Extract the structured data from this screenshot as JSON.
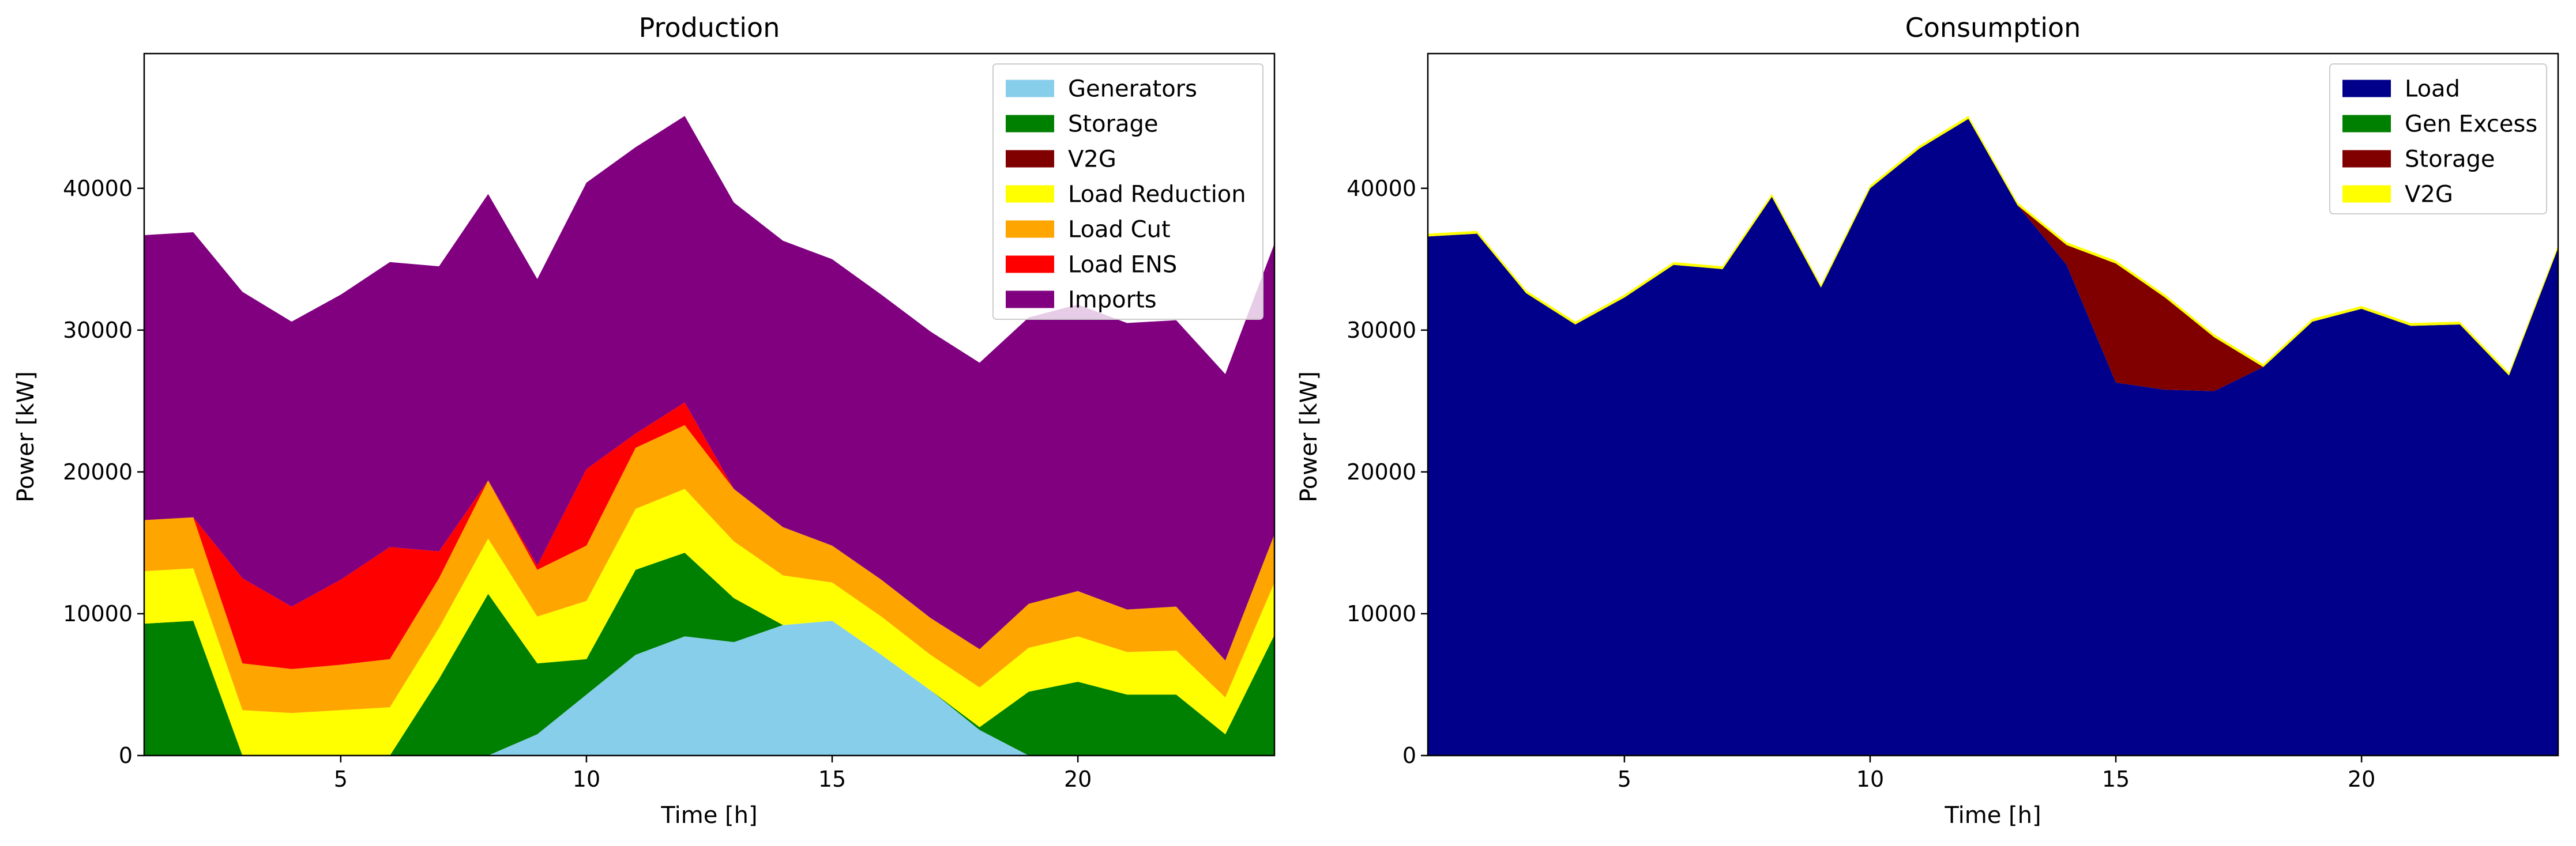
{
  "chart_data": [
    {
      "type": "area",
      "title": "Production",
      "xlabel": "Time [h]",
      "ylabel": "Power [kW]",
      "xlim": [
        1,
        24
      ],
      "ylim": [
        0,
        49500
      ],
      "xticks": [
        5,
        10,
        15,
        20
      ],
      "yticks": [
        0,
        10000,
        20000,
        30000,
        40000
      ],
      "stacked": true,
      "legend_position": "top-right",
      "grid": false,
      "x": [
        1,
        2,
        3,
        4,
        5,
        6,
        7,
        8,
        9,
        10,
        11,
        12,
        13,
        14,
        15,
        16,
        17,
        18,
        19,
        20,
        21,
        22,
        23,
        24
      ],
      "series": [
        {
          "name": "Generators",
          "color": "#87CEEB",
          "values": [
            0,
            0,
            0,
            0,
            0,
            0,
            0,
            0,
            1500,
            4300,
            7100,
            8400,
            8000,
            9200,
            9500,
            7100,
            4600,
            1800,
            0,
            0,
            0,
            0,
            0,
            0
          ]
        },
        {
          "name": "Storage",
          "color": "#008000",
          "values": [
            9300,
            9500,
            0,
            0,
            0,
            0,
            5400,
            11400,
            5000,
            2500,
            6000,
            5900,
            3100,
            0,
            0,
            0,
            0,
            200,
            4500,
            5200,
            4300,
            4300,
            1500,
            8500
          ]
        },
        {
          "name": "V2G",
          "color": "#800000",
          "values": [
            0,
            0,
            0,
            0,
            0,
            0,
            0,
            0,
            0,
            0,
            0,
            0,
            0,
            0,
            0,
            0,
            0,
            0,
            0,
            0,
            0,
            0,
            0,
            0
          ]
        },
        {
          "name": "Load Reduction",
          "color": "#FFFF00",
          "values": [
            3700,
            3700,
            3200,
            3000,
            3200,
            3400,
            3600,
            3900,
            3300,
            4100,
            4300,
            4500,
            4000,
            3500,
            2700,
            2700,
            2500,
            2800,
            3100,
            3200,
            3000,
            3100,
            2600,
            3700
          ]
        },
        {
          "name": "Load Cut",
          "color": "#FFA500",
          "values": [
            3600,
            3600,
            3300,
            3100,
            3200,
            3400,
            3500,
            4100,
            3300,
            3900,
            4300,
            4500,
            3700,
            3400,
            2600,
            2600,
            2600,
            2700,
            3100,
            3200,
            3000,
            3100,
            2600,
            3400
          ]
        },
        {
          "name": "Load ENS",
          "color": "#FF0000",
          "values": [
            0,
            0,
            6000,
            4400,
            6000,
            7900,
            1900,
            0,
            300,
            5400,
            1000,
            1600,
            0,
            0,
            0,
            0,
            0,
            0,
            0,
            0,
            0,
            0,
            0,
            0
          ]
        },
        {
          "name": "Imports",
          "color": "#800080",
          "values": [
            20100,
            20100,
            20200,
            20100,
            20100,
            20100,
            20100,
            20200,
            20200,
            20200,
            20200,
            20200,
            20200,
            20200,
            20200,
            20100,
            20200,
            20200,
            20200,
            20200,
            20200,
            20200,
            20200,
            20500
          ]
        }
      ]
    },
    {
      "type": "area",
      "title": "Consumption",
      "xlabel": "Time [h]",
      "ylabel": "Power [kW]",
      "xlim": [
        1,
        24
      ],
      "ylim": [
        0,
        49500
      ],
      "xticks": [
        5,
        10,
        15,
        20
      ],
      "yticks": [
        0,
        10000,
        20000,
        30000,
        40000
      ],
      "stacked": true,
      "legend_position": "top-right",
      "grid": false,
      "x": [
        1,
        2,
        3,
        4,
        5,
        6,
        7,
        8,
        9,
        10,
        11,
        12,
        13,
        14,
        15,
        16,
        17,
        18,
        19,
        20,
        21,
        22,
        23,
        24
      ],
      "series": [
        {
          "name": "Load",
          "color": "#00008B",
          "values": [
            36600,
            36800,
            32600,
            30400,
            32300,
            34600,
            34300,
            39400,
            33000,
            40000,
            42800,
            44900,
            38800,
            34600,
            26300,
            25800,
            25700,
            27400,
            30600,
            31500,
            30300,
            30400,
            26800,
            35800
          ]
        },
        {
          "name": "Gen Excess",
          "color": "#008000",
          "values": [
            0,
            0,
            0,
            0,
            0,
            0,
            0,
            0,
            0,
            0,
            0,
            0,
            0,
            0,
            0,
            0,
            0,
            0,
            0,
            0,
            0,
            0,
            0,
            0
          ]
        },
        {
          "name": "Storage",
          "color": "#800000",
          "values": [
            0,
            0,
            0,
            0,
            0,
            0,
            0,
            0,
            0,
            0,
            0,
            0,
            0,
            1400,
            8400,
            6500,
            3800,
            0,
            0,
            0,
            0,
            0,
            0,
            0
          ]
        },
        {
          "name": "V2G",
          "color": "#FFFF00",
          "values": [
            200,
            200,
            200,
            200,
            200,
            200,
            200,
            200,
            200,
            200,
            200,
            200,
            200,
            200,
            200,
            200,
            200,
            200,
            200,
            200,
            200,
            200,
            200,
            200
          ]
        }
      ]
    }
  ]
}
